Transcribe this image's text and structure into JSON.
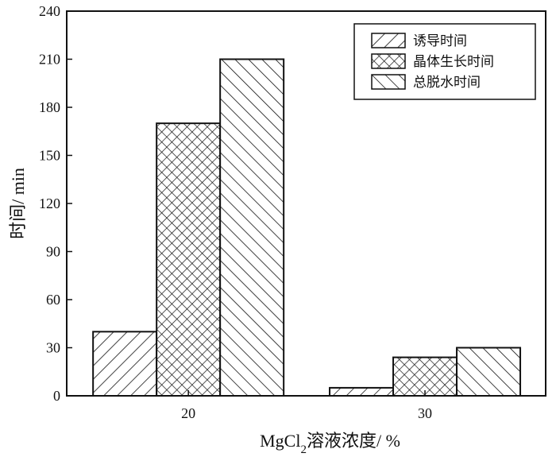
{
  "chart_data": {
    "type": "bar",
    "categories": [
      "20",
      "30"
    ],
    "series": [
      {
        "name": "诱导时间",
        "values": [
          40,
          5
        ],
        "pattern": "diag-right"
      },
      {
        "name": "晶体生长时间",
        "values": [
          170,
          24
        ],
        "pattern": "crosshatch"
      },
      {
        "name": "总脱水时间",
        "values": [
          210,
          30
        ],
        "pattern": "diag-left"
      }
    ],
    "ylim": [
      0,
      240
    ],
    "yticks": [
      0,
      30,
      60,
      90,
      120,
      150,
      180,
      210,
      240
    ],
    "ylabel": "时间/ min",
    "xlabel": {
      "prefix": "MgCl",
      "subscript": "2",
      "suffix": "溶液浓度/ %"
    },
    "legend_position": "top-right",
    "grid": false
  }
}
